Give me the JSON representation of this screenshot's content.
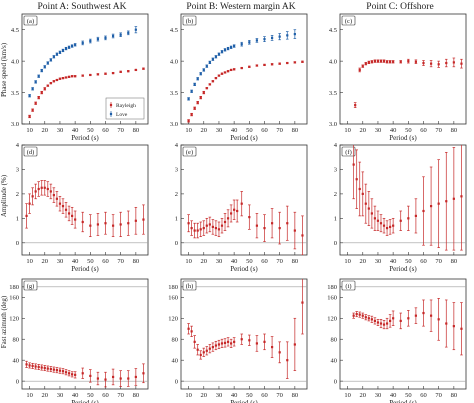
{
  "column_titles": [
    "Point A: Southwest AK",
    "Point B: Western margin AK",
    "Point C: Offshore"
  ],
  "row_ylabels": [
    "Phase speed (km/s)",
    "Amplitude (%)",
    "Fast azimuth (deg)"
  ],
  "xlabel": "Period (s)",
  "panel_labels": [
    "(a)",
    "(b)",
    "(c)",
    "(d)",
    "(e)",
    "(f)",
    "(g)",
    "(h)",
    "(i)"
  ],
  "legend": {
    "rayleigh": "Rayleigh",
    "love": "Love"
  },
  "colors": {
    "rayleigh": "#c62828",
    "love": "#1f5fa8",
    "ref_line": "#9e9e9e"
  },
  "x_ticks": [
    10,
    20,
    30,
    40,
    50,
    60,
    70,
    80
  ],
  "chart_data": [
    {
      "panel": "(a)",
      "type": "scatter",
      "title": "Point A: Southwest AK",
      "xlabel": "Period (s)",
      "ylabel": "Phase speed (km/s)",
      "xlim": [
        5,
        88
      ],
      "ylim": [
        3.0,
        4.75
      ],
      "yticks": [
        3.0,
        3.5,
        4.0,
        4.5
      ],
      "legend_position": "bottom-right",
      "series": [
        {
          "name": "Rayleigh",
          "color": "#c62828",
          "x": [
            10,
            12,
            14,
            16,
            18,
            20,
            22,
            24,
            26,
            28,
            30,
            32,
            34,
            36,
            38,
            40,
            45,
            50,
            55,
            60,
            65,
            70,
            75,
            80,
            85
          ],
          "y": [
            3.12,
            3.22,
            3.33,
            3.42,
            3.5,
            3.56,
            3.61,
            3.65,
            3.68,
            3.7,
            3.72,
            3.73,
            3.74,
            3.75,
            3.76,
            3.76,
            3.77,
            3.78,
            3.79,
            3.8,
            3.81,
            3.83,
            3.84,
            3.86,
            3.88
          ],
          "err": [
            0.02,
            0.02,
            0.02,
            0.02,
            0.02,
            0.02,
            0.01,
            0.01,
            0.01,
            0.01,
            0.01,
            0.01,
            0.01,
            0.01,
            0.01,
            0.01,
            0.01,
            0.01,
            0.01,
            0.01,
            0.01,
            0.01,
            0.01,
            0.01,
            0.01
          ]
        },
        {
          "name": "Love",
          "color": "#1f5fa8",
          "x": [
            10,
            12,
            14,
            16,
            18,
            20,
            22,
            24,
            26,
            28,
            30,
            32,
            34,
            36,
            38,
            40,
            45,
            50,
            55,
            60,
            65,
            70,
            75,
            80
          ],
          "y": [
            3.45,
            3.56,
            3.67,
            3.76,
            3.85,
            3.91,
            3.97,
            4.02,
            4.07,
            4.11,
            4.14,
            4.17,
            4.2,
            4.22,
            4.24,
            4.26,
            4.29,
            4.32,
            4.35,
            4.37,
            4.4,
            4.42,
            4.45,
            4.5
          ],
          "err": [
            0.02,
            0.02,
            0.02,
            0.02,
            0.02,
            0.02,
            0.02,
            0.02,
            0.02,
            0.02,
            0.02,
            0.02,
            0.02,
            0.02,
            0.02,
            0.02,
            0.03,
            0.03,
            0.03,
            0.03,
            0.03,
            0.03,
            0.03,
            0.05
          ]
        }
      ]
    },
    {
      "panel": "(b)",
      "type": "scatter",
      "title": "Point B: Western margin AK",
      "xlabel": "Period (s)",
      "ylabel": "",
      "xlim": [
        5,
        88
      ],
      "ylim": [
        3.0,
        4.75
      ],
      "yticks": [
        3.0,
        3.5,
        4.0,
        4.5
      ],
      "series": [
        {
          "name": "Rayleigh",
          "color": "#c62828",
          "x": [
            10,
            12,
            14,
            16,
            18,
            20,
            22,
            24,
            26,
            28,
            30,
            32,
            34,
            36,
            38,
            40,
            45,
            50,
            55,
            60,
            65,
            70,
            75,
            80,
            85
          ],
          "y": [
            3.05,
            3.15,
            3.25,
            3.34,
            3.42,
            3.5,
            3.57,
            3.63,
            3.68,
            3.73,
            3.77,
            3.8,
            3.82,
            3.84,
            3.86,
            3.87,
            3.89,
            3.91,
            3.93,
            3.94,
            3.95,
            3.96,
            3.97,
            3.98,
            3.99
          ],
          "err": [
            0.02,
            0.02,
            0.02,
            0.02,
            0.02,
            0.02,
            0.01,
            0.01,
            0.01,
            0.01,
            0.01,
            0.01,
            0.01,
            0.01,
            0.01,
            0.01,
            0.01,
            0.01,
            0.01,
            0.01,
            0.01,
            0.01,
            0.01,
            0.01,
            0.01
          ]
        },
        {
          "name": "Love",
          "color": "#1f5fa8",
          "x": [
            10,
            12,
            14,
            16,
            18,
            20,
            22,
            24,
            26,
            28,
            30,
            32,
            34,
            36,
            38,
            40,
            45,
            50,
            55,
            60,
            65,
            70,
            75,
            80
          ],
          "y": [
            3.4,
            3.52,
            3.63,
            3.72,
            3.8,
            3.86,
            3.92,
            3.98,
            4.03,
            4.07,
            4.11,
            4.15,
            4.18,
            4.2,
            4.22,
            4.24,
            4.27,
            4.3,
            4.33,
            4.35,
            4.37,
            4.39,
            4.41,
            4.43
          ],
          "err": [
            0.02,
            0.02,
            0.02,
            0.02,
            0.02,
            0.02,
            0.02,
            0.02,
            0.02,
            0.02,
            0.02,
            0.02,
            0.02,
            0.02,
            0.02,
            0.02,
            0.03,
            0.03,
            0.03,
            0.04,
            0.04,
            0.05,
            0.06,
            0.07
          ]
        }
      ]
    },
    {
      "panel": "(c)",
      "type": "scatter",
      "title": "Point C: Offshore",
      "xlabel": "Period (s)",
      "ylabel": "",
      "xlim": [
        5,
        88
      ],
      "ylim": [
        3.0,
        4.75
      ],
      "yticks": [
        3.0,
        3.5,
        4.0,
        4.5
      ],
      "series": [
        {
          "name": "Rayleigh",
          "color": "#c62828",
          "x": [
            15,
            18,
            20,
            22,
            24,
            26,
            28,
            30,
            32,
            34,
            36,
            38,
            40,
            45,
            50,
            55,
            60,
            65,
            70,
            75,
            80,
            85
          ],
          "y": [
            3.3,
            3.86,
            3.92,
            3.96,
            3.98,
            3.99,
            4.0,
            4.0,
            4.0,
            4.0,
            3.99,
            3.99,
            3.99,
            3.99,
            4.0,
            3.99,
            3.97,
            3.96,
            3.95,
            3.97,
            3.98,
            3.96
          ],
          "err": [
            0.04,
            0.03,
            0.02,
            0.02,
            0.02,
            0.02,
            0.02,
            0.02,
            0.02,
            0.02,
            0.02,
            0.02,
            0.02,
            0.02,
            0.03,
            0.03,
            0.04,
            0.05,
            0.05,
            0.06,
            0.07,
            0.07
          ]
        }
      ]
    },
    {
      "panel": "(d)",
      "type": "scatter",
      "xlabel": "Period (s)",
      "ylabel": "Amplitude (%)",
      "xlim": [
        5,
        88
      ],
      "ylim": [
        -0.5,
        4
      ],
      "yticks": [
        0,
        1,
        2,
        3,
        4
      ],
      "ref_line": 0,
      "series": [
        {
          "name": "",
          "color": "#c62828",
          "x": [
            8,
            10,
            12,
            14,
            16,
            18,
            20,
            22,
            24,
            26,
            28,
            30,
            32,
            34,
            36,
            38,
            40,
            45,
            50,
            55,
            60,
            65,
            70,
            75,
            80,
            85
          ],
          "y": [
            1.1,
            1.6,
            1.9,
            2.1,
            2.2,
            2.25,
            2.25,
            2.2,
            2.1,
            1.95,
            1.8,
            1.6,
            1.5,
            1.35,
            1.2,
            1.1,
            0.95,
            0.85,
            0.7,
            0.75,
            0.8,
            0.7,
            0.75,
            0.8,
            0.9,
            0.95
          ],
          "err": [
            0.5,
            0.4,
            0.35,
            0.3,
            0.3,
            0.3,
            0.3,
            0.3,
            0.3,
            0.3,
            0.3,
            0.3,
            0.3,
            0.3,
            0.3,
            0.35,
            0.35,
            0.4,
            0.45,
            0.45,
            0.45,
            0.45,
            0.5,
            0.5,
            0.55,
            0.6
          ]
        }
      ]
    },
    {
      "panel": "(e)",
      "type": "scatter",
      "xlabel": "Period (s)",
      "ylabel": "",
      "xlim": [
        5,
        88
      ],
      "ylim": [
        -0.5,
        4
      ],
      "yticks": [
        0,
        1,
        2,
        3,
        4
      ],
      "ref_line": 0,
      "series": [
        {
          "name": "",
          "color": "#c62828",
          "x": [
            10,
            12,
            14,
            16,
            18,
            20,
            22,
            24,
            26,
            28,
            30,
            32,
            34,
            36,
            38,
            40,
            42,
            45,
            50,
            55,
            60,
            65,
            70,
            75,
            80,
            85
          ],
          "y": [
            0.8,
            0.6,
            0.5,
            0.5,
            0.55,
            0.6,
            0.7,
            0.75,
            0.65,
            0.6,
            0.55,
            0.7,
            0.85,
            1.0,
            1.2,
            1.35,
            1.3,
            1.6,
            1.05,
            0.7,
            0.6,
            0.8,
            0.6,
            0.8,
            0.5,
            0.3
          ],
          "err": [
            0.35,
            0.3,
            0.3,
            0.3,
            0.3,
            0.3,
            0.3,
            0.3,
            0.3,
            0.3,
            0.3,
            0.3,
            0.35,
            0.35,
            0.35,
            0.4,
            0.45,
            0.5,
            0.5,
            0.5,
            0.55,
            0.6,
            0.65,
            0.7,
            0.75,
            0.8
          ]
        }
      ]
    },
    {
      "panel": "(f)",
      "type": "scatter",
      "xlabel": "Period (s)",
      "ylabel": "",
      "xlim": [
        5,
        88
      ],
      "ylim": [
        -0.5,
        4
      ],
      "yticks": [
        0,
        1,
        2,
        3,
        4
      ],
      "ref_line": 0,
      "series": [
        {
          "name": "",
          "color": "#c62828",
          "x": [
            14,
            16,
            18,
            20,
            22,
            24,
            26,
            28,
            30,
            32,
            34,
            36,
            38,
            40,
            45,
            50,
            55,
            60,
            65,
            70,
            75,
            80,
            85
          ],
          "y": [
            3.2,
            2.6,
            2.2,
            2.0,
            1.6,
            1.4,
            1.2,
            1.0,
            0.9,
            0.8,
            0.7,
            0.6,
            0.65,
            0.7,
            0.9,
            1.0,
            1.1,
            1.3,
            1.5,
            1.6,
            1.7,
            1.8,
            1.9
          ],
          "err": [
            1.4,
            1.2,
            1.1,
            0.9,
            0.8,
            0.7,
            0.6,
            0.5,
            0.4,
            0.35,
            0.3,
            0.3,
            0.3,
            0.3,
            0.4,
            0.5,
            0.7,
            1.4,
            1.6,
            1.8,
            2.0,
            2.1,
            2.2
          ]
        }
      ]
    },
    {
      "panel": "(g)",
      "type": "scatter",
      "xlabel": "Period (s)",
      "ylabel": "Fast azimuth (deg)",
      "xlim": [
        5,
        88
      ],
      "ylim": [
        -15,
        195
      ],
      "yticks": [
        0,
        40,
        80,
        120,
        160,
        180
      ],
      "ref_line": 180,
      "ref_line_2": 0,
      "series": [
        {
          "name": "",
          "color": "#c62828",
          "x": [
            8,
            10,
            12,
            14,
            16,
            18,
            20,
            22,
            24,
            26,
            28,
            30,
            32,
            34,
            36,
            38,
            40,
            45,
            50,
            55,
            60,
            65,
            70,
            75,
            80,
            85
          ],
          "y": [
            32,
            30,
            29,
            28,
            27,
            26,
            25,
            24,
            23,
            22,
            21,
            20,
            19,
            17,
            15,
            13,
            12,
            15,
            10,
            5,
            3,
            8,
            5,
            5,
            8,
            15
          ],
          "err": [
            6,
            5,
            5,
            5,
            5,
            5,
            5,
            5,
            5,
            5,
            5,
            5,
            5,
            5,
            5,
            5,
            6,
            10,
            12,
            12,
            14,
            15,
            15,
            15,
            16,
            18
          ]
        }
      ]
    },
    {
      "panel": "(h)",
      "type": "scatter",
      "xlabel": "Period (s)",
      "ylabel": "",
      "xlim": [
        5,
        88
      ],
      "ylim": [
        -15,
        195
      ],
      "yticks": [
        0,
        40,
        80,
        120,
        160,
        180
      ],
      "ref_line": 180,
      "ref_line_2": 0,
      "series": [
        {
          "name": "",
          "color": "#c62828",
          "x": [
            10,
            12,
            14,
            16,
            18,
            20,
            22,
            24,
            26,
            28,
            30,
            32,
            34,
            36,
            38,
            40,
            45,
            50,
            55,
            60,
            65,
            70,
            75,
            80,
            85
          ],
          "y": [
            100,
            95,
            75,
            60,
            50,
            55,
            58,
            62,
            65,
            68,
            70,
            72,
            73,
            75,
            72,
            75,
            80,
            78,
            72,
            75,
            65,
            55,
            40,
            70,
            150
          ],
          "err": [
            10,
            10,
            12,
            10,
            8,
            8,
            8,
            8,
            8,
            8,
            8,
            8,
            8,
            8,
            8,
            8,
            10,
            10,
            15,
            15,
            20,
            20,
            35,
            50,
            60
          ]
        }
      ]
    },
    {
      "panel": "(i)",
      "type": "scatter",
      "xlabel": "Period (s)",
      "ylabel": "",
      "xlim": [
        5,
        88
      ],
      "ylim": [
        -15,
        195
      ],
      "yticks": [
        0,
        40,
        80,
        120,
        160,
        180
      ],
      "ref_line": 180,
      "ref_line_2": 0,
      "series": [
        {
          "name": "",
          "color": "#c62828",
          "x": [
            14,
            16,
            18,
            20,
            22,
            24,
            26,
            28,
            30,
            32,
            34,
            36,
            38,
            40,
            45,
            50,
            55,
            60,
            65,
            70,
            75,
            80,
            85
          ],
          "y": [
            125,
            128,
            127,
            125,
            122,
            120,
            118,
            115,
            112,
            110,
            108,
            110,
            115,
            120,
            115,
            120,
            125,
            130,
            125,
            118,
            110,
            105,
            100
          ],
          "err": [
            5,
            5,
            5,
            5,
            5,
            5,
            6,
            6,
            6,
            8,
            8,
            10,
            12,
            14,
            15,
            15,
            15,
            25,
            30,
            40,
            45,
            45,
            50
          ]
        }
      ]
    }
  ]
}
